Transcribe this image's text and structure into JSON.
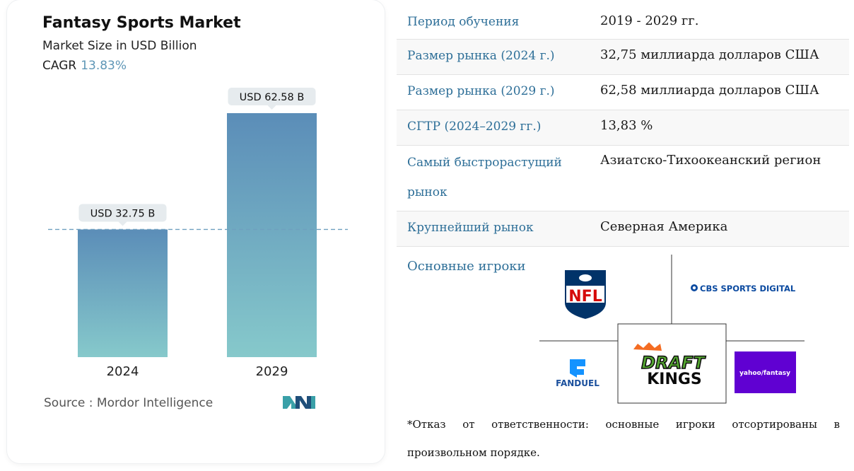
{
  "chart_card": {
    "title": "Fantasy Sports Market",
    "subtitle": "Market Size in USD Billion",
    "cagr_label": "CAGR",
    "cagr_value": "13.83%",
    "source": "Source :  Mordor Intelligence"
  },
  "chart_data": {
    "type": "bar",
    "title": "Fantasy Sports Market",
    "ylabel": "Market Size in USD Billion",
    "categories": [
      "2024",
      "2029"
    ],
    "values": [
      32.75,
      62.58
    ],
    "data_labels": [
      "USD 32.75 B",
      "USD 62.58 B"
    ],
    "ylim": [
      0,
      62.58
    ],
    "reference_line_value": 32.75,
    "grid": false,
    "colors": {
      "bar_top": "#5b8db8",
      "bar_bottom": "#86c9cb",
      "dashed_line": "#6fa0c0",
      "label_bg": "#e6ebee"
    }
  },
  "specs": [
    {
      "key": "Период обучения",
      "value": "2019 - 2029 гг."
    },
    {
      "key": "Размер рынка (2024 г.)",
      "value": "32,75 миллиарда долларов США"
    },
    {
      "key": "Размер рынка (2029 г.)",
      "value": "62,58 миллиарда долларов США"
    },
    {
      "key": "СГТР (2024–2029 гг.)",
      "value": "13,83 %"
    },
    {
      "key": "Самый быстрорастущий рынок",
      "value": "Азиатско-Тихоокеанский регион"
    },
    {
      "key": "Крупнейший рынок",
      "value": "Северная Америка"
    }
  ],
  "players": {
    "label": "Основные игроки",
    "logos": {
      "nfl": "NFL",
      "cbs": "CBS SPORTS DIGITAL",
      "fanduel": "FANDUEL",
      "draftkings_top": "DRAFT",
      "draftkings_bottom": "KINGS",
      "yahoo": "yahoo/fantasy"
    },
    "disclaimer": "*Отказ от ответственности: основные игроки отсортированы в произвольном порядке."
  }
}
